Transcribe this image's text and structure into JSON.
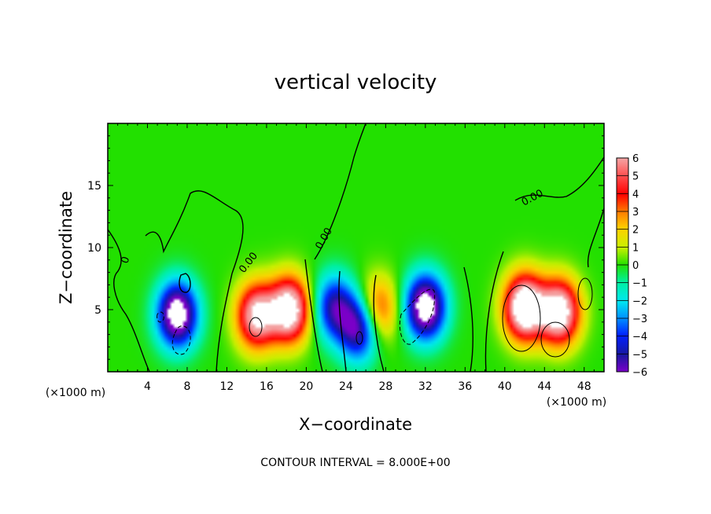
{
  "chart_data": {
    "type": "heatmap",
    "title": "vertical velocity",
    "xlabel": "X−coordinate",
    "ylabel": "Z−coordinate",
    "x_unit_left": "(×1000 m)",
    "x_unit_right": "(×1000 m)",
    "xlim": [
      0,
      50
    ],
    "ylim": [
      0,
      20
    ],
    "xticks": [
      4,
      8,
      12,
      16,
      20,
      24,
      28,
      32,
      36,
      40,
      44,
      48
    ],
    "yticks": [
      5,
      10,
      15
    ],
    "footer": "CONTOUR INTERVAL = 8.000E+00",
    "contour_label": "0.00",
    "colorbar": {
      "ticks": [
        "6",
        "5",
        "4",
        "3",
        "2",
        "1",
        "0",
        "−1",
        "−2",
        "−3",
        "−4",
        "−5",
        "−6"
      ],
      "range": [
        -6,
        6
      ]
    },
    "features": [
      {
        "x": 7.0,
        "z": 4.6,
        "w": -8
      },
      {
        "x": 15.0,
        "z": 4.5,
        "w": 7
      },
      {
        "x": 18.3,
        "z": 5.0,
        "w": 8
      },
      {
        "x": 22.8,
        "z": 5.2,
        "w": -5
      },
      {
        "x": 25.3,
        "z": 3.5,
        "w": -6
      },
      {
        "x": 27.2,
        "z": 5.0,
        "w": 4
      },
      {
        "x": 32.0,
        "z": 5.2,
        "w": -8
      },
      {
        "x": 42.0,
        "z": 5.2,
        "w": 9
      },
      {
        "x": 45.5,
        "z": 4.8,
        "w": 8
      }
    ]
  }
}
